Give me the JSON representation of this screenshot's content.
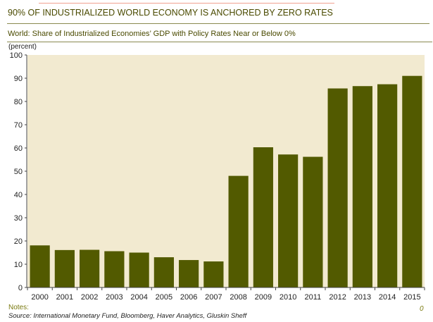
{
  "title": "90% OF INDUSTRIALIZED WORLD ECONOMY IS ANCHORED BY ZERO RATES",
  "notes": "Notes:",
  "source": "Source: International Monetary Fund, Bloomberg, Haver Analytics, Gluskin Sheff",
  "page_marker": "0",
  "colors": {
    "bar": "#525a00",
    "plot_bg": "#f2ead0"
  },
  "chart_data": {
    "type": "bar",
    "title": "World: Share of Industrialized Economies’ GDP with Policy Rates Near or Below 0%",
    "ylabel": "(percent)",
    "xlabel": "",
    "ylim": [
      0,
      100
    ],
    "yticks": [
      "0",
      "10",
      "20",
      "30",
      "40",
      "50",
      "60",
      "70",
      "80",
      "90",
      "100"
    ],
    "categories": [
      "2000",
      "2001",
      "2002",
      "2003",
      "2004",
      "2005",
      "2006",
      "2007",
      "2008",
      "2009",
      "2010",
      "2011",
      "2012",
      "2013",
      "2014",
      "2015"
    ],
    "values": [
      18.1,
      16.1,
      16.2,
      15.6,
      15.0,
      13.0,
      11.8,
      11.2,
      48.0,
      60.3,
      57.2,
      56.2,
      85.6,
      86.6,
      87.4,
      91.0
    ],
    "grid": false
  }
}
